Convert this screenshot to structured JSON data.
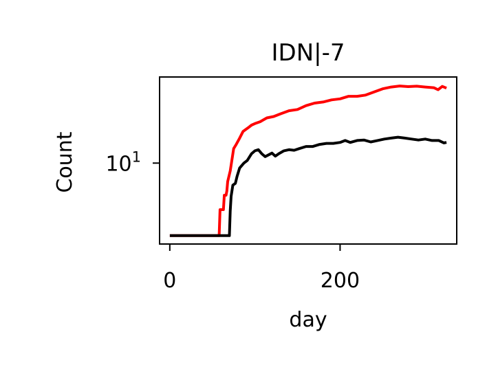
{
  "chart_data": {
    "type": "line",
    "title": "IDN|-7",
    "xlabel": "day",
    "ylabel": "Count",
    "xlim": [
      -12,
      337
    ],
    "ylim": [
      3.0,
      36.0
    ],
    "yscale": "log",
    "grid": false,
    "legend": "none",
    "x_ticks": [
      {
        "value": 0,
        "label": "0"
      },
      {
        "value": 200,
        "label": "200"
      }
    ],
    "y_ticks": [
      {
        "value": 10,
        "base": "10",
        "exp": "1"
      }
    ],
    "series": [
      {
        "color": "#ff0000",
        "points": [
          [
            0,
            3.4
          ],
          [
            20,
            3.4
          ],
          [
            40,
            3.4
          ],
          [
            58,
            3.4
          ],
          [
            59,
            5.0
          ],
          [
            63,
            5.0
          ],
          [
            64,
            6.2
          ],
          [
            66,
            6.2
          ],
          [
            67,
            6.6
          ],
          [
            68,
            7.6
          ],
          [
            71,
            8.9
          ],
          [
            73,
            10.5
          ],
          [
            75,
            12.4
          ],
          [
            78,
            13.2
          ],
          [
            82,
            14.5
          ],
          [
            86,
            16.0
          ],
          [
            92,
            16.9
          ],
          [
            96,
            17.6
          ],
          [
            100,
            18.0
          ],
          [
            106,
            18.5
          ],
          [
            114,
            19.6
          ],
          [
            122,
            20.0
          ],
          [
            130,
            20.8
          ],
          [
            140,
            21.8
          ],
          [
            150,
            22.2
          ],
          [
            160,
            23.5
          ],
          [
            170,
            24.4
          ],
          [
            180,
            24.8
          ],
          [
            190,
            25.6
          ],
          [
            200,
            26.0
          ],
          [
            210,
            27.0
          ],
          [
            220,
            27.0
          ],
          [
            230,
            27.5
          ],
          [
            240,
            28.8
          ],
          [
            250,
            30.2
          ],
          [
            260,
            31.0
          ],
          [
            270,
            31.5
          ],
          [
            280,
            31.2
          ],
          [
            290,
            31.4
          ],
          [
            300,
            31.0
          ],
          [
            310,
            30.7
          ],
          [
            315,
            29.8
          ],
          [
            320,
            31.3
          ],
          [
            325,
            30.5
          ]
        ]
      },
      {
        "color": "#000000",
        "points": [
          [
            0,
            3.4
          ],
          [
            20,
            3.4
          ],
          [
            40,
            3.4
          ],
          [
            60,
            3.4
          ],
          [
            70,
            3.4
          ],
          [
            71,
            4.9
          ],
          [
            72,
            6.1
          ],
          [
            74,
            7.2
          ],
          [
            77,
            7.4
          ],
          [
            79,
            8.2
          ],
          [
            82,
            9.3
          ],
          [
            87,
            10.0
          ],
          [
            91,
            10.4
          ],
          [
            96,
            11.5
          ],
          [
            100,
            12.0
          ],
          [
            104,
            12.2
          ],
          [
            108,
            11.5
          ],
          [
            112,
            11.0
          ],
          [
            116,
            11.3
          ],
          [
            120,
            11.6
          ],
          [
            124,
            11.1
          ],
          [
            128,
            11.5
          ],
          [
            134,
            12.0
          ],
          [
            140,
            12.2
          ],
          [
            146,
            12.1
          ],
          [
            152,
            12.4
          ],
          [
            160,
            12.8
          ],
          [
            168,
            12.8
          ],
          [
            176,
            13.2
          ],
          [
            184,
            13.4
          ],
          [
            192,
            13.4
          ],
          [
            200,
            13.6
          ],
          [
            206,
            14.0
          ],
          [
            212,
            13.6
          ],
          [
            220,
            14.0
          ],
          [
            228,
            14.1
          ],
          [
            236,
            13.7
          ],
          [
            244,
            14.0
          ],
          [
            252,
            14.3
          ],
          [
            260,
            14.5
          ],
          [
            268,
            14.7
          ],
          [
            276,
            14.5
          ],
          [
            284,
            14.3
          ],
          [
            292,
            14.1
          ],
          [
            300,
            14.3
          ],
          [
            308,
            14.0
          ],
          [
            316,
            14.0
          ],
          [
            322,
            13.5
          ],
          [
            325,
            13.6
          ]
        ]
      }
    ]
  }
}
